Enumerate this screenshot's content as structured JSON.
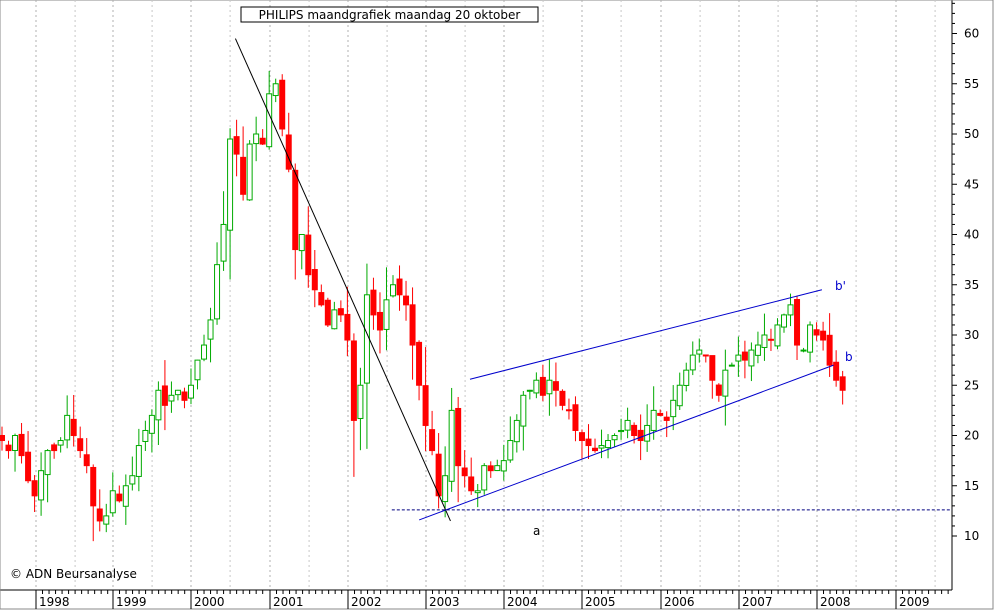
{
  "chart_data": {
    "type": "candlestick",
    "title": "PHILIPS maandgrafiek maandag 20 oktober",
    "copyright": "© ADN Beursanalyse",
    "x_axis": {
      "tick_labels": [
        "1998",
        "1999",
        "2000",
        "2001",
        "2002",
        "2003",
        "2004",
        "2005",
        "2006",
        "2007",
        "2008",
        "2009"
      ],
      "range": [
        1997.5,
        2009.6
      ]
    },
    "y_axis": {
      "tick_labels": [
        "10",
        "15",
        "20",
        "25",
        "30",
        "35",
        "40",
        "45",
        "50",
        "55",
        "60"
      ],
      "ticks": [
        10,
        15,
        20,
        25,
        30,
        35,
        40,
        45,
        50,
        55,
        60
      ],
      "range": [
        5,
        63
      ],
      "position": "right"
    },
    "grid": {
      "vertical_dotted": true,
      "horizontal": false
    },
    "colors": {
      "up": "#00aa00",
      "down": "#ff0000",
      "trendline_a": "#000000",
      "channel": "#0000cc",
      "support": "#000080"
    },
    "annotations": [
      {
        "label": "a",
        "color": "#000000"
      },
      {
        "label": "b'",
        "color": "#0000cc"
      },
      {
        "label": "b",
        "color": "#0000cc"
      }
    ],
    "trendline_a": {
      "from": [
        2000.55,
        59.5
      ],
      "to": [
        2003.3,
        11.5
      ]
    },
    "channel_upper": {
      "from": [
        2003.55,
        25.6
      ],
      "to": [
        2008.05,
        34.5
      ]
    },
    "channel_lower": {
      "from": [
        2002.9,
        11.6
      ],
      "to": [
        2008.2,
        27.0
      ]
    },
    "support_level": {
      "y": 12.6,
      "from_x": 2002.55,
      "to_x": 2009.6
    },
    "month_count": 130,
    "closes": [
      19.5,
      18.5,
      20.0,
      18.0,
      15.5,
      14.0,
      16.5,
      18.5,
      18.5,
      19.5,
      22.0,
      20.0,
      18.5,
      17.0,
      13.0,
      11.5,
      12.0,
      14.5,
      13.5,
      15.0,
      16.0,
      19.0,
      20.5,
      22.0,
      24.5,
      23.0,
      24.0,
      24.5,
      23.5,
      25.0,
      27.5,
      29.0,
      31.5,
      37.0,
      41.0,
      49.5,
      48.0,
      44.0,
      49.0,
      50.0,
      49.0,
      54.0,
      55.0,
      50.5,
      46.5,
      38.5,
      40.0,
      36.0,
      34.5,
      33.0,
      31.0,
      32.5,
      32.0,
      29.5,
      21.5,
      25.0,
      34.0,
      32.0,
      30.5,
      33.5,
      35.0,
      34.0,
      33.0,
      29.0,
      25.0,
      21.0,
      18.5,
      14.0,
      16.0,
      22.5,
      17.0,
      16.0,
      14.5,
      14.5,
      17.0,
      16.5,
      17.0,
      17.5,
      19.5,
      21.5,
      24.0,
      24.5,
      25.5,
      24.0,
      25.5,
      24.5,
      23.0,
      22.5,
      20.5,
      19.5,
      19.0,
      18.5,
      19.0,
      19.5,
      20.0,
      20.5,
      21.5,
      20.0,
      19.5,
      21.0,
      22.5,
      22.0,
      21.5,
      23.5,
      25.0,
      26.5,
      28.0,
      28.5,
      28.0,
      25.5,
      24.0,
      26.5,
      27.0,
      28.0,
      27.5,
      28.5,
      29.0,
      30.0,
      29.5,
      31.0,
      32.0,
      33.0,
      29.0,
      28.5,
      31.0,
      30.0,
      29.5,
      27.0,
      25.5,
      24.5
    ]
  }
}
